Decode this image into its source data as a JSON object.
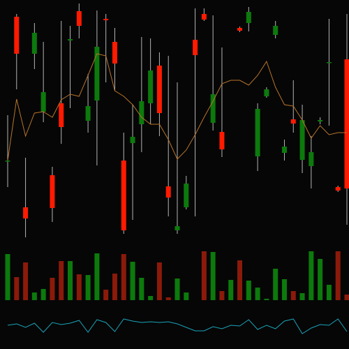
{
  "chart_data": {
    "type": "candlestick",
    "background": "#060606",
    "up_color": "#0c7a0c",
    "down_color": "#ff1a00",
    "wick_color": "#b4b4b4",
    "ylim": [
      0,
      340
    ],
    "open": [
      109,
      316,
      43,
      263,
      180,
      89,
      192,
      282,
      324,
      167,
      196,
      313,
      280,
      110,
      135,
      162,
      192,
      246,
      73,
      10,
      43,
      283,
      320,
      164,
      151,
      null,
      300,
      307,
      116,
      202,
      290,
      121,
      169,
      111,
      102,
      166,
      250,
      72,
      255
    ],
    "high": [
      175,
      320,
      114,
      307,
      280,
      101,
      310,
      303,
      335,
      234,
      325,
      320,
      300,
      150,
      190,
      287,
      285,
      265,
      260,
      222,
      88,
      328,
      328,
      318,
      272,
      null,
      302,
      330,
      192,
      215,
      310,
      140,
      225,
      190,
      145,
      172,
      313,
      74,
      320
    ],
    "low": [
      72,
      212,
      0,
      241,
      165,
      22,
      134,
      185,
      285,
      150,
      103,
      222,
      210,
      5,
      25,
      122,
      162,
      145,
      30,
      5,
      40,
      30,
      310,
      153,
      115,
      null,
      294,
      295,
      95,
      200,
      285,
      110,
      150,
      92,
      70,
      162,
      160,
      65,
      18
    ],
    "close": [
      110,
      263,
      27,
      293,
      208,
      42,
      158,
      284,
      303,
      188,
      273,
      311,
      249,
      10,
      144,
      195,
      239,
      178,
      57,
      16,
      77,
      261,
      312,
      205,
      126,
      null,
      296,
      323,
      184,
      212,
      303,
      130,
      163,
      168,
      122,
      168,
      251,
      67,
      70
    ],
    "moving_average": {
      "color": "#b8742a",
      "values": [
        110,
        198,
        145,
        178,
        180,
        172,
        197,
        205,
        202,
        232,
        263,
        260,
        210,
        202,
        190,
        172,
        162,
        162,
        140,
        112,
        125,
        147,
        172,
        195,
        220,
        225,
        225,
        218,
        232,
        252,
        215,
        190,
        188,
        168,
        142,
        160,
        147,
        150,
        150
      ]
    },
    "volume": {
      "ylim": [
        0,
        75
      ],
      "values": [
        66,
        33,
        54,
        11,
        16,
        32,
        56,
        56,
        37,
        36,
        67,
        15,
        38,
        66,
        55,
        32,
        6,
        54,
        4,
        31,
        11,
        null,
        70,
        69,
        13,
        29,
        57,
        28,
        18,
        2,
        45,
        30,
        13,
        10,
        70,
        59,
        22,
        70,
        8
      ],
      "colors": [
        "#0c7a0c",
        "#8b1a0a",
        "#8b1a0a",
        "#0c7a0c",
        "#0c7a0c",
        "#8b1a0a",
        "#8b1a0a",
        "#0c7a0c",
        "#8b1a0a",
        "#0c7a0c",
        "#0c7a0c",
        "#8b1a0a",
        "#8b1a0a",
        "#8b1a0a",
        "#0c7a0c",
        "#0c7a0c",
        "#0c7a0c",
        "#8b1a0a",
        "#8b1a0a",
        "#0c7a0c",
        "#0c7a0c",
        null,
        "#8b1a0a",
        "#0c7a0c",
        "#8b1a0a",
        "#0c7a0c",
        "#8b1a0a",
        "#0c7a0c",
        "#0c7a0c",
        "#0c7a0c",
        "#0c7a0c",
        "#0c7a0c",
        "#8b1a0a",
        "#0c7a0c",
        "#0c7a0c",
        "#0c7a0c",
        "#0c7a0c",
        "#8b1a0a",
        "#8b1a0a"
      ]
    },
    "indicator": {
      "color": "#1aa3b8",
      "ylim": [
        10,
        55
      ],
      "values": [
        34,
        36,
        31,
        37,
        24,
        38,
        35,
        37,
        41,
        24,
        42,
        38,
        25,
        43,
        40,
        38,
        39,
        38,
        39,
        36,
        31,
        26,
        26,
        32,
        29,
        34,
        33,
        42,
        28,
        34,
        29,
        40,
        43,
        22,
        30,
        35,
        34,
        43,
        25
      ]
    }
  }
}
